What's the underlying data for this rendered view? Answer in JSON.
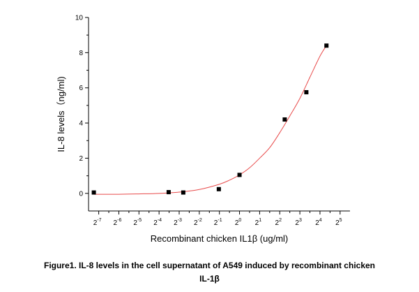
{
  "chart_data": {
    "type": "scatter",
    "title": "",
    "xlabel": "Recombinant chicken IL1β (ug/ml)",
    "ylabel": "IL-8 levels（ng/ml)",
    "x_scale": "log2",
    "x_ticks": [
      {
        "base": "2",
        "exp": "-7",
        "value": 0.0078125
      },
      {
        "base": "2",
        "exp": "-6",
        "value": 0.015625
      },
      {
        "base": "2",
        "exp": "-5",
        "value": 0.03125
      },
      {
        "base": "2",
        "exp": "-4",
        "value": 0.0625
      },
      {
        "base": "2",
        "exp": "-3",
        "value": 0.125
      },
      {
        "base": "2",
        "exp": "-2",
        "value": 0.25
      },
      {
        "base": "2",
        "exp": "-1",
        "value": 0.5
      },
      {
        "base": "2",
        "exp": "0",
        "value": 1
      },
      {
        "base": "2",
        "exp": "1",
        "value": 2
      },
      {
        "base": "2",
        "exp": "2",
        "value": 4
      },
      {
        "base": "2",
        "exp": "3",
        "value": 8
      },
      {
        "base": "2",
        "exp": "4",
        "value": 16
      },
      {
        "base": "2",
        "exp": "5",
        "value": 32
      }
    ],
    "xlim": [
      0.0055,
      45
    ],
    "y_ticks": [
      "0",
      "2",
      "4",
      "6",
      "8",
      "10"
    ],
    "ylim": [
      -1,
      10
    ],
    "grid": false,
    "series": [
      {
        "marker": "square",
        "color": "#000000",
        "points": [
          {
            "x": 0.0066,
            "y": 0.05
          },
          {
            "x": 0.087,
            "y": 0.07
          },
          {
            "x": 0.144,
            "y": 0.05
          },
          {
            "x": 0.49,
            "y": 0.24
          },
          {
            "x": 1.0,
            "y": 1.05
          },
          {
            "x": 4.75,
            "y": 4.2
          },
          {
            "x": 10.0,
            "y": 5.75
          },
          {
            "x": 20.0,
            "y": 8.4
          }
        ]
      }
    ],
    "fit": {
      "color": "#e84a4a",
      "points": [
        {
          "x": 0.0066,
          "y": -0.05
        },
        {
          "x": 0.0156,
          "y": -0.05
        },
        {
          "x": 0.0312,
          "y": -0.03
        },
        {
          "x": 0.0625,
          "y": 0.0
        },
        {
          "x": 0.125,
          "y": 0.07
        },
        {
          "x": 0.25,
          "y": 0.22
        },
        {
          "x": 0.5,
          "y": 0.52
        },
        {
          "x": 0.707,
          "y": 0.75
        },
        {
          "x": 1.0,
          "y": 1.05
        },
        {
          "x": 1.41,
          "y": 1.45
        },
        {
          "x": 2.0,
          "y": 2.0
        },
        {
          "x": 2.83,
          "y": 2.6
        },
        {
          "x": 4.0,
          "y": 3.45
        },
        {
          "x": 5.66,
          "y": 4.4
        },
        {
          "x": 8.0,
          "y": 5.4
        },
        {
          "x": 11.3,
          "y": 6.6
        },
        {
          "x": 16.0,
          "y": 7.8
        },
        {
          "x": 20.0,
          "y": 8.4
        }
      ]
    }
  },
  "caption": {
    "line1": "Figure1. IL-8 levels in the cell supernatant of A549 induced by recombinant chicken",
    "line2": "IL-1β"
  }
}
